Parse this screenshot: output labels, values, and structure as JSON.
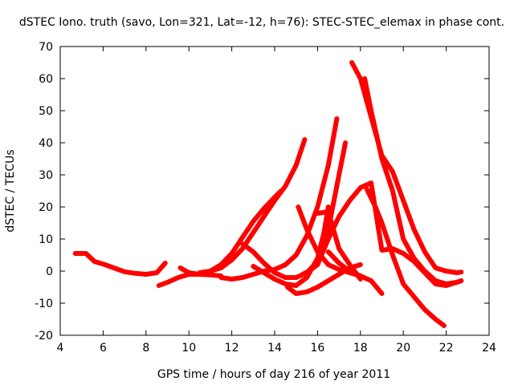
{
  "chart_data": {
    "type": "line",
    "title": "dSTEC Iono. truth (savo, Lon=321, Lat=-12, h=76): STEC-STEC_elemax in phase cont.",
    "xlabel": "GPS time / hours of day 216 of year 2011",
    "ylabel": "dSTEC  / TECUs",
    "xlim": [
      4,
      24
    ],
    "ylim": [
      -20,
      70
    ],
    "x_ticks": [
      4,
      6,
      8,
      10,
      12,
      14,
      16,
      18,
      20,
      22,
      24
    ],
    "y_ticks": [
      -20,
      -10,
      0,
      10,
      20,
      30,
      40,
      50,
      60,
      70
    ],
    "x_tick_labels": [
      "4",
      "6",
      "8",
      "10",
      "12",
      "14",
      "16",
      "18",
      "20",
      "22",
      "24"
    ],
    "y_tick_labels": [
      "-20",
      "-10",
      "0",
      "10",
      "20",
      "30",
      "40",
      "50",
      "60",
      "70"
    ],
    "grid": false,
    "legend": "none",
    "color": "#ff0000",
    "series": [
      {
        "x": [
          4.7,
          5.2,
          5.6,
          6.0,
          6.5,
          7.0,
          7.5,
          8.0,
          8.5,
          8.9
        ],
        "y": [
          5.5,
          5.5,
          3.0,
          2.2,
          1.0,
          -0.2,
          -0.7,
          -1.0,
          -0.5,
          2.5
        ]
      },
      {
        "x": [
          8.6,
          9.0,
          9.5,
          10.0,
          10.5,
          11.0,
          11.5
        ],
        "y": [
          -4.5,
          -3.5,
          -2.0,
          -1.0,
          -1.0,
          -1.2,
          -1.5
        ]
      },
      {
        "x": [
          9.6,
          10.0,
          10.5,
          11.0,
          11.5,
          12.0,
          12.5,
          13.0,
          13.5,
          14.0,
          14.3
        ],
        "y": [
          1.0,
          -0.5,
          -1.0,
          0.0,
          2.0,
          5.5,
          10.5,
          15.5,
          19.5,
          23.0,
          25.0
        ]
      },
      {
        "x": [
          10.5,
          11.0,
          11.5,
          12.0,
          12.5,
          13.0,
          13.5,
          14.0,
          14.5,
          15.0,
          15.4
        ],
        "y": [
          -0.5,
          0.0,
          1.0,
          3.5,
          7.0,
          12.0,
          17.0,
          22.0,
          26.5,
          33.0,
          41.0
        ]
      },
      {
        "x": [
          11.5,
          12.0,
          12.5,
          13.0,
          13.5,
          14.0,
          14.5,
          15.0,
          15.5,
          16.0,
          16.5,
          16.9
        ],
        "y": [
          -2.0,
          -2.5,
          -2.0,
          -1.0,
          0.0,
          0.5,
          2.0,
          5.0,
          11.0,
          20.0,
          33.0,
          47.5
        ]
      },
      {
        "x": [
          12.5,
          13.0,
          13.5,
          14.0,
          14.5,
          15.0,
          15.5,
          16.0,
          16.5,
          17.0,
          17.3
        ],
        "y": [
          8.5,
          6.0,
          2.5,
          -0.5,
          -2.0,
          -2.0,
          -0.5,
          3.0,
          13.0,
          30.0,
          40.0
        ]
      },
      {
        "x": [
          13.0,
          13.5,
          14.0,
          14.5,
          15.0,
          15.5,
          16.0,
          16.3,
          16.5
        ],
        "y": [
          1.5,
          -0.5,
          -2.5,
          -4.0,
          -4.5,
          -2.0,
          4.0,
          12.0,
          20.0
        ]
      },
      {
        "x": [
          14.6,
          15.0,
          15.5,
          16.0,
          16.5,
          17.0,
          17.5,
          18.0
        ],
        "y": [
          -5.0,
          -7.0,
          -6.5,
          -5.0,
          -3.0,
          -1.0,
          1.0,
          2.0
        ]
      },
      {
        "x": [
          15.1,
          15.5,
          16.0,
          16.5,
          17.0,
          17.5,
          18.0
        ],
        "y": [
          20.0,
          13.0,
          6.0,
          2.0,
          0.5,
          -0.5,
          -1.5
        ]
      },
      {
        "x": [
          16.0,
          16.5,
          17.0,
          17.5,
          18.0
        ],
        "y": [
          18.0,
          18.5,
          7.0,
          2.0,
          -2.5
        ]
      },
      {
        "x": [
          15.3,
          15.6,
          16.0,
          16.5,
          17.0,
          17.5,
          18.0,
          18.5,
          19.0,
          19.5,
          20.0,
          20.5,
          21.0,
          21.5,
          22.0,
          22.7
        ],
        "y": [
          -1.0,
          0.0,
          2.0,
          10.0,
          17.0,
          22.0,
          26.0,
          27.5,
          6.5,
          7.0,
          5.5,
          3.0,
          -0.5,
          -4.0,
          -4.5,
          -3.0
        ]
      },
      {
        "x": [
          16.5,
          17.0,
          17.5,
          18.0,
          18.5,
          19.0
        ],
        "y": [
          6.0,
          2.5,
          0.0,
          -1.5,
          -3.0,
          -7.0
        ]
      },
      {
        "x": [
          17.6,
          18.0,
          18.5,
          19.0,
          19.5,
          20.0,
          20.5,
          21.0,
          21.5,
          22.0,
          22.5,
          22.7
        ],
        "y": [
          65.0,
          60.0,
          48.0,
          36.0,
          31.0,
          22.0,
          13.0,
          6.0,
          1.0,
          0.0,
          -0.5,
          -0.3
        ]
      },
      {
        "x": [
          18.3,
          18.7,
          19.0,
          19.5,
          20.0,
          20.5,
          21.0,
          21.5,
          21.9
        ],
        "y": [
          25.5,
          20.0,
          15.0,
          5.0,
          -4.0,
          -8.0,
          -12.0,
          -15.0,
          -17.0
        ]
      },
      {
        "x": [
          18.2,
          18.5,
          19.0,
          19.5,
          20.0,
          20.5,
          21.0,
          21.5,
          22.0,
          22.5,
          22.7
        ],
        "y": [
          60.0,
          50.0,
          35.0,
          25.0,
          10.0,
          4.0,
          0.0,
          -3.0,
          -4.0,
          -3.5,
          -3.0
        ]
      }
    ]
  }
}
